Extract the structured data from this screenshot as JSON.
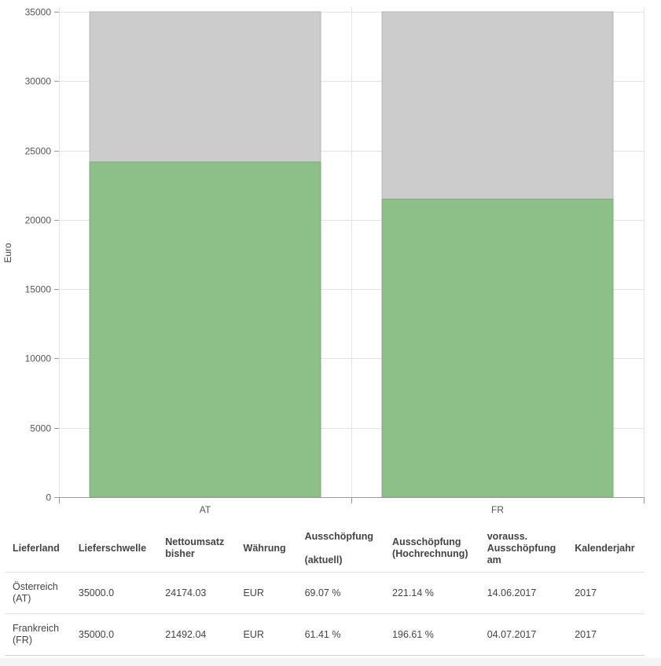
{
  "chart_data": {
    "type": "bar",
    "stacked": false,
    "categories": [
      "AT",
      "FR"
    ],
    "ylabel": "Euro",
    "ylim": [
      0,
      35000
    ],
    "yticks": [
      0,
      5000,
      10000,
      15000,
      20000,
      25000,
      30000,
      35000
    ],
    "grid": true,
    "series": [
      {
        "color": "#cccccc",
        "values": [
          35000,
          35000
        ]
      },
      {
        "color": "#8cc088",
        "values": [
          24174.03,
          21492.04
        ]
      }
    ]
  },
  "table": {
    "headers": [
      [
        "Lieferland"
      ],
      [
        "Lieferschwelle"
      ],
      [
        "Nettoumsatz",
        "bisher"
      ],
      [
        "Währung"
      ],
      [
        "Ausschöpfung",
        "",
        "(aktuell)"
      ],
      [
        "Ausschöpfung",
        "(Hochrechnung)"
      ],
      [
        "vorauss.",
        "Ausschöpfung",
        "am"
      ],
      [
        "Kalenderjahr"
      ]
    ],
    "rows": [
      [
        [
          "Österreich",
          "(AT)"
        ],
        [
          "35000.0"
        ],
        [
          "24174.03"
        ],
        [
          "EUR"
        ],
        [
          "69.07 %"
        ],
        [
          "221.14 %"
        ],
        [
          "14.06.2017"
        ],
        [
          "2017"
        ]
      ],
      [
        [
          "Frankreich",
          "(FR)"
        ],
        [
          "35000.0"
        ],
        [
          "21492.04"
        ],
        [
          "EUR"
        ],
        [
          "61.41 %"
        ],
        [
          "196.61 %"
        ],
        [
          "04.07.2017"
        ],
        [
          "2017"
        ]
      ]
    ]
  }
}
